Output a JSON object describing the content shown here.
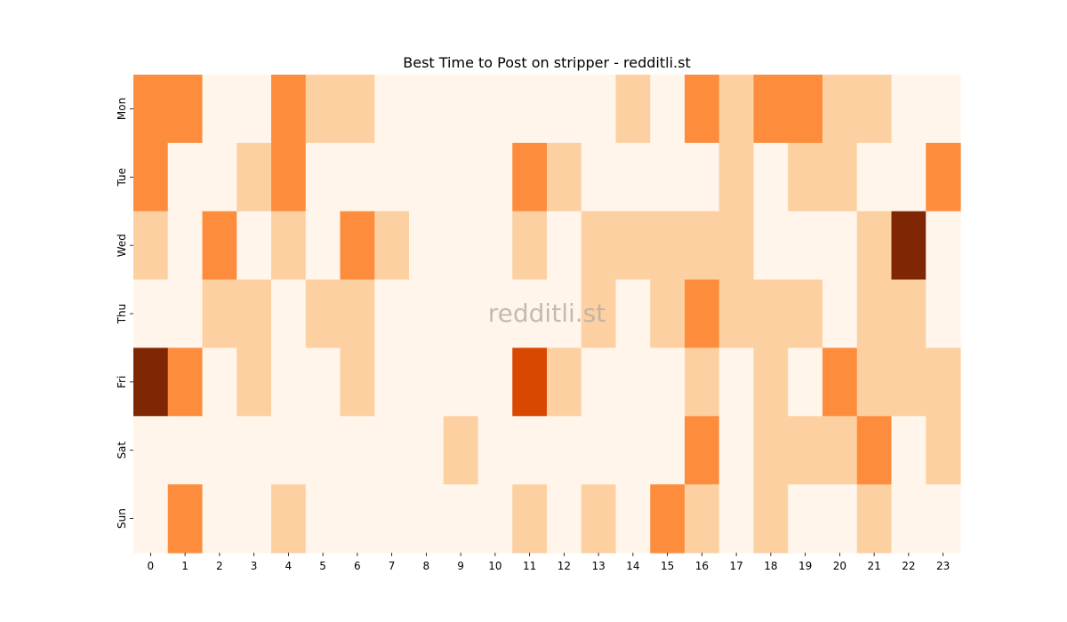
{
  "chart_data": {
    "type": "heatmap",
    "title": "Best Time to Post on stripper - redditli.st",
    "xlabel": "",
    "ylabel": "",
    "x": [
      "0",
      "1",
      "2",
      "3",
      "4",
      "5",
      "6",
      "7",
      "8",
      "9",
      "10",
      "11",
      "12",
      "13",
      "14",
      "15",
      "16",
      "17",
      "18",
      "19",
      "20",
      "21",
      "22",
      "23"
    ],
    "y": [
      "Mon",
      "Tue",
      "Wed",
      "Thu",
      "Fri",
      "Sat",
      "Sun"
    ],
    "values": [
      [
        2,
        2,
        0,
        0,
        2,
        1,
        1,
        0,
        0,
        0,
        0,
        0,
        0,
        0,
        1,
        0,
        2,
        1,
        2,
        2,
        1,
        1,
        0,
        0
      ],
      [
        2,
        0,
        0,
        1,
        2,
        0,
        0,
        0,
        0,
        0,
        0,
        2,
        1,
        0,
        0,
        0,
        0,
        1,
        0,
        1,
        1,
        0,
        0,
        2
      ],
      [
        1,
        0,
        2,
        0,
        1,
        0,
        2,
        1,
        0,
        0,
        0,
        1,
        0,
        1,
        1,
        1,
        1,
        1,
        0,
        0,
        0,
        1,
        4,
        0
      ],
      [
        0,
        0,
        1,
        1,
        0,
        1,
        1,
        0,
        0,
        0,
        0,
        0,
        0,
        1,
        0,
        1,
        2,
        1,
        1,
        1,
        0,
        1,
        1,
        0
      ],
      [
        4,
        2,
        0,
        1,
        0,
        0,
        1,
        0,
        0,
        0,
        0,
        3,
        1,
        0,
        0,
        0,
        1,
        0,
        1,
        0,
        2,
        1,
        1,
        1
      ],
      [
        0,
        0,
        0,
        0,
        0,
        0,
        0,
        0,
        0,
        1,
        0,
        0,
        0,
        0,
        0,
        0,
        2,
        0,
        1,
        1,
        1,
        2,
        0,
        1
      ],
      [
        0,
        2,
        0,
        0,
        1,
        0,
        0,
        0,
        0,
        0,
        0,
        1,
        0,
        1,
        0,
        2,
        1,
        0,
        1,
        0,
        0,
        1,
        0,
        0
      ]
    ],
    "colors": [
      "#fff5eb",
      "#fdd0a2",
      "#fd8d3c",
      "#d94801",
      "#7f2704"
    ],
    "grid": false,
    "legend": "none"
  },
  "watermark": "redditli.st"
}
